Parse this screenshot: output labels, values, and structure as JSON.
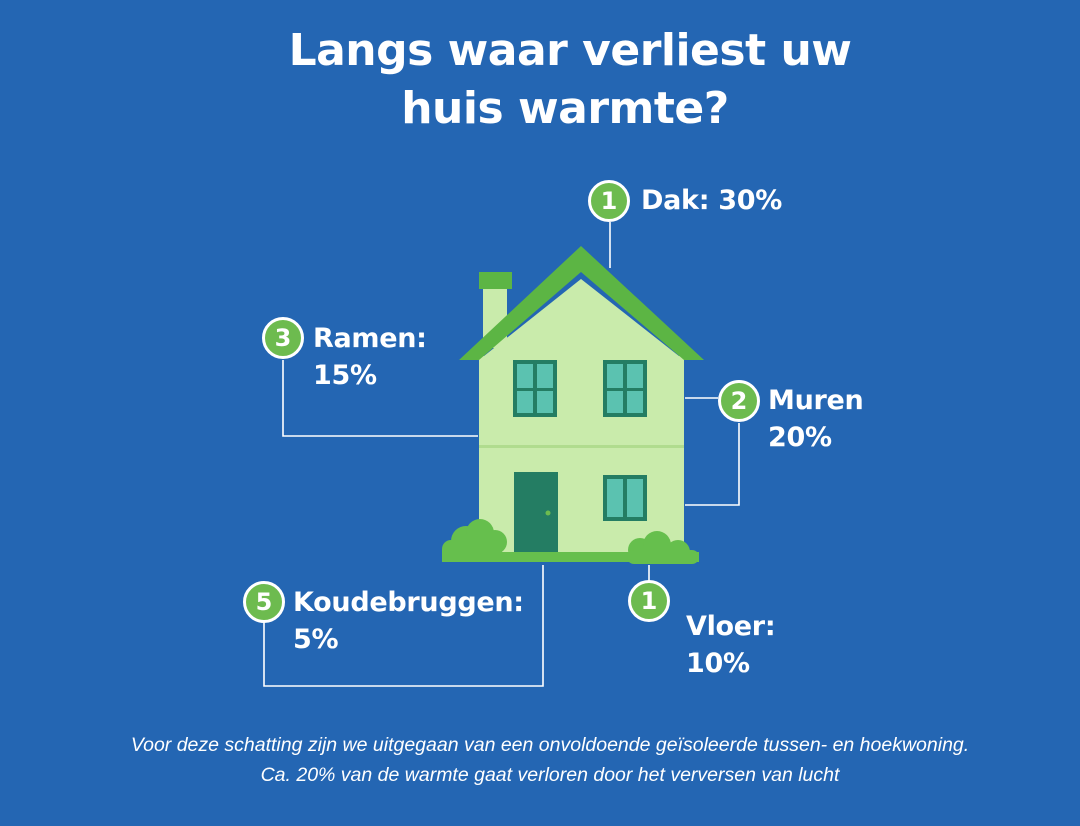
{
  "title": {
    "line1": "Langs waar verliest uw",
    "line2": "huis warmte?"
  },
  "items": [
    {
      "number": "1",
      "name": "Dak:",
      "value": "30%"
    },
    {
      "number": "2",
      "name": "Muren",
      "value": "20%"
    },
    {
      "number": "3",
      "name": "Ramen:",
      "value": "15%"
    },
    {
      "number": "1",
      "name": "Vloer:",
      "value": "10%"
    },
    {
      "number": "5",
      "name": "Koudebruggen:",
      "value": "5%"
    }
  ],
  "footnote": {
    "line1": "Voor deze schatting zijn we uitgegaan van een onvoldoende geïsoleerde tussen- en hoekwoning.",
    "line2": "Ca. 20% van de warmte gaat verloren door het verversen van lucht"
  },
  "colors": {
    "background": "#2466b3",
    "badge": "#6dbb4f",
    "house_wall": "#c9ebab",
    "roof": "#5cb544",
    "window": "#5bc2b0",
    "door": "#247d63",
    "bush": "#66bf4d"
  }
}
